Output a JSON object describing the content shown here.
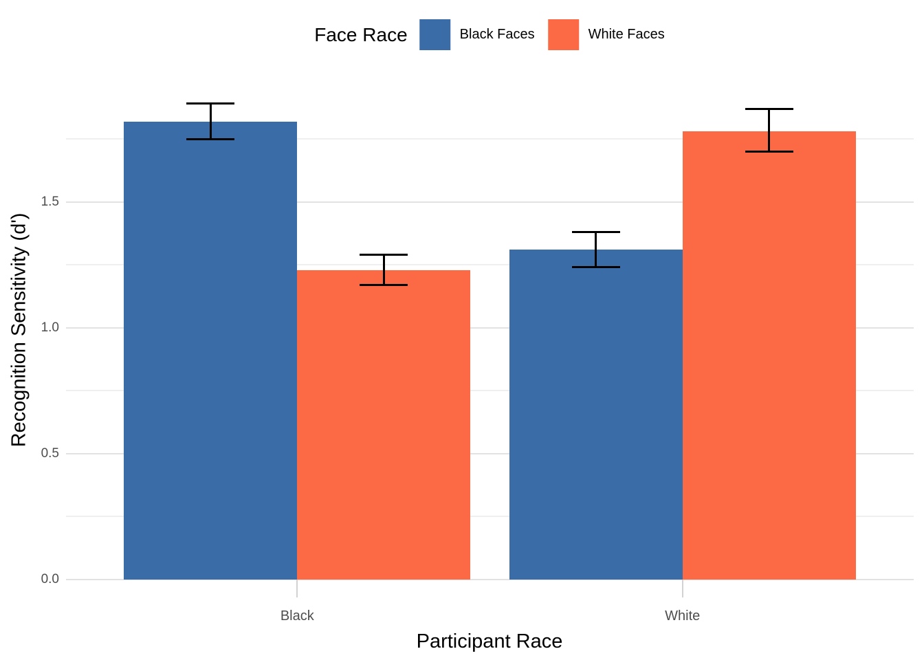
{
  "chart_data": {
    "type": "bar",
    "title": "",
    "xlabel": "Participant Race",
    "ylabel": "Recognition Sensitivity (d')",
    "categories": [
      "Black",
      "White"
    ],
    "legend": {
      "title": "Face Race",
      "position": "top",
      "entries": [
        {
          "name": "Black Faces",
          "color": "#3A6DA8"
        },
        {
          "name": "White Faces",
          "color": "#FB6A44"
        }
      ]
    },
    "series": [
      {
        "name": "Black Faces",
        "color": "#3A6DA8",
        "values": [
          1.82,
          1.31
        ],
        "error_low": [
          1.75,
          1.24
        ],
        "error_high": [
          1.89,
          1.38
        ]
      },
      {
        "name": "White Faces",
        "color": "#FB6A44",
        "values": [
          1.23,
          1.78
        ],
        "error_low": [
          1.17,
          1.7
        ],
        "error_high": [
          1.29,
          1.87
        ]
      }
    ],
    "ylim": [
      0,
      1.98
    ],
    "yticks": [
      0,
      0.5,
      1.0,
      1.5
    ],
    "ytick_labels": [
      "0.0",
      "0.5",
      "1.0",
      "1.5"
    ],
    "minor_grid_step": 0.25,
    "grid": "horizontal-only",
    "grid_major_color": "#E2E2E2",
    "grid_minor_color": "#EFEFEF",
    "error_bar_color": "#000000",
    "tick_label_color": "#4D4D4D"
  }
}
